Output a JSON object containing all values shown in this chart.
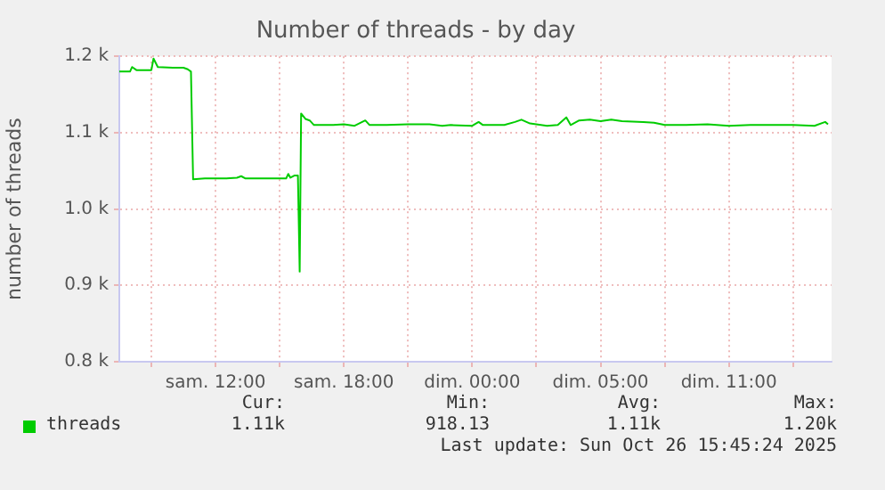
{
  "chart_data": {
    "type": "line",
    "title": "Number of threads - by day",
    "ylabel": "number of threads",
    "xlim": [
      "2025-10-25T05:30",
      "2025-10-26T14:48"
    ],
    "xticks": [
      {
        "value": "2025-10-25T07:00",
        "label": null
      },
      {
        "value": "2025-10-25T10:00",
        "label": "sam. 12:00"
      },
      {
        "value": "2025-10-25T13:00",
        "label": null
      },
      {
        "value": "2025-10-25T16:00",
        "label": "sam. 18:00"
      },
      {
        "value": "2025-10-25T19:00",
        "label": null
      },
      {
        "value": "2025-10-25T22:00",
        "label": "dim. 00:00"
      },
      {
        "value": "2025-10-26T01:00",
        "label": null
      },
      {
        "value": "2025-10-26T04:00",
        "label": "dim. 05:00"
      },
      {
        "value": "2025-10-26T07:00",
        "label": null
      },
      {
        "value": "2025-10-26T10:00",
        "label": "dim. 11:00"
      },
      {
        "value": "2025-10-26T13:00",
        "label": null
      }
    ],
    "ylim": [
      800,
      1200
    ],
    "yticks": [
      {
        "value": 800,
        "label": "0.8 k"
      },
      {
        "value": 900,
        "label": "0.9 k"
      },
      {
        "value": 1000,
        "label": "1.0 k"
      },
      {
        "value": 1100,
        "label": "1.1 k"
      },
      {
        "value": 1200,
        "label": "1.2 k"
      }
    ],
    "x": [
      "2025-10-25T05:30",
      "2025-10-25T06:00",
      "2025-10-25T06:06",
      "2025-10-25T06:18",
      "2025-10-25T07:00",
      "2025-10-25T07:06",
      "2025-10-25T07:18",
      "2025-10-25T08:00",
      "2025-10-25T08:30",
      "2025-10-25T08:42",
      "2025-10-25T08:51",
      "2025-10-25T08:57",
      "2025-10-25T09:30",
      "2025-10-25T10:30",
      "2025-10-25T11:00",
      "2025-10-25T11:12",
      "2025-10-25T11:24",
      "2025-10-25T12:00",
      "2025-10-25T13:00",
      "2025-10-25T13:18",
      "2025-10-25T13:24",
      "2025-10-25T13:30",
      "2025-10-25T13:42",
      "2025-10-25T13:51",
      "2025-10-25T13:56",
      "2025-10-25T14:00",
      "2025-10-25T14:12",
      "2025-10-25T14:24",
      "2025-10-25T14:36",
      "2025-10-25T15:30",
      "2025-10-25T16:00",
      "2025-10-25T16:30",
      "2025-10-25T17:00",
      "2025-10-25T17:12",
      "2025-10-25T18:00",
      "2025-10-25T19:00",
      "2025-10-25T20:00",
      "2025-10-25T20:36",
      "2025-10-25T21:00",
      "2025-10-25T22:00",
      "2025-10-25T22:18",
      "2025-10-25T22:30",
      "2025-10-25T23:30",
      "2025-10-26T00:00",
      "2025-10-26T00:18",
      "2025-10-26T00:42",
      "2025-10-26T01:30",
      "2025-10-26T02:00",
      "2025-10-26T02:24",
      "2025-10-26T02:36",
      "2025-10-26T03:00",
      "2025-10-26T03:30",
      "2025-10-26T04:00",
      "2025-10-26T04:30",
      "2025-10-26T05:00",
      "2025-10-26T06:00",
      "2025-10-26T06:30",
      "2025-10-26T07:00",
      "2025-10-26T08:00",
      "2025-10-26T09:00",
      "2025-10-26T10:00",
      "2025-10-26T11:00",
      "2025-10-26T12:00",
      "2025-10-26T13:00",
      "2025-10-26T14:00",
      "2025-10-26T14:30",
      "2025-10-26T14:38"
    ],
    "series": [
      {
        "name": "threads",
        "color": "#00cc00",
        "values": [
          1180,
          1180,
          1186,
          1182,
          1182,
          1197,
          1186,
          1185,
          1185,
          1183,
          1180,
          1039,
          1040,
          1040,
          1041,
          1043,
          1040,
          1040,
          1040,
          1040,
          1046,
          1041,
          1044,
          1044,
          918,
          1125,
          1118,
          1116,
          1110,
          1110,
          1111,
          1109,
          1116,
          1110,
          1110,
          1111,
          1111,
          1109,
          1110,
          1109,
          1114,
          1110,
          1110,
          1114,
          1117,
          1112,
          1109,
          1110,
          1120,
          1110,
          1116,
          1117,
          1115,
          1117,
          1115,
          1114,
          1113,
          1110,
          1110,
          1111,
          1109,
          1110,
          1110,
          1110,
          1109,
          1114,
          1111
        ]
      }
    ],
    "grid": true,
    "legend": "bottom",
    "marker": "none",
    "line_style": "solid",
    "annotations": [
      "Cur:",
      "1.11k",
      "Min:",
      "918.13",
      "Avg:",
      "1.11k",
      "Max:",
      "1.20k",
      "Last update: Sun Oct 26 15:45:24 2025"
    ]
  }
}
